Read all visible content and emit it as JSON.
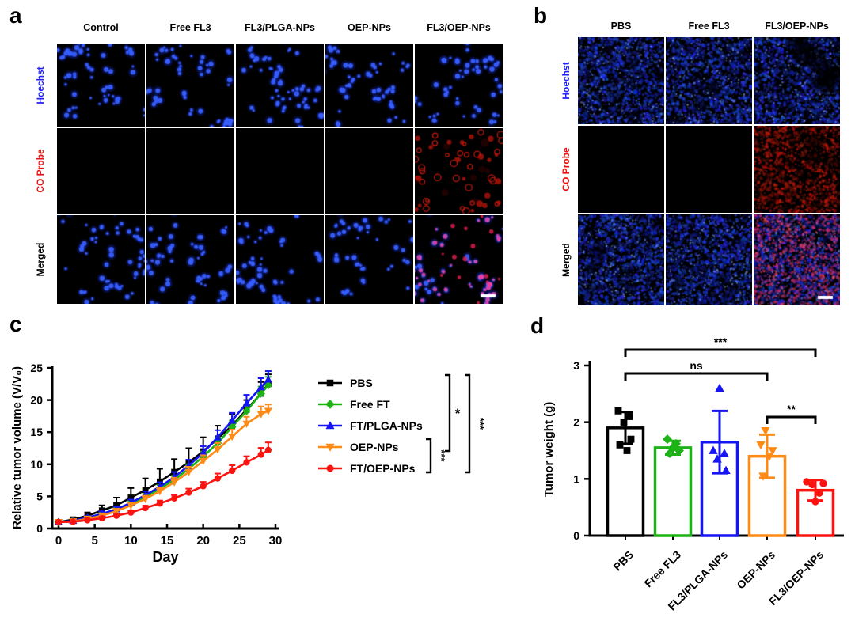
{
  "figure": {
    "background": "#ffffff"
  },
  "panel_a": {
    "label": "a",
    "col_headers": [
      "Control",
      "Free FL3",
      "FL3/PLGA-NPs",
      "OEP-NPs",
      "FL3/OEP-NPs"
    ],
    "row_labels": [
      {
        "text": "Hoechst",
        "color": "#1f1fff"
      },
      {
        "text": "CO Probe",
        "color": "#ee1111"
      },
      {
        "text": "Merged",
        "color": "#000000"
      }
    ],
    "cells": [
      [
        "blue-sparse",
        "blue-sparse",
        "blue-sparse",
        "blue-sparse",
        "blue-sparse"
      ],
      [
        "black",
        "black",
        "black",
        "black",
        "red-cells"
      ],
      [
        "blue-sparse",
        "blue-sparse",
        "blue-sparse",
        "blue-sparse",
        "merged-sparse"
      ]
    ],
    "scalebar_cell": {
      "row": 2,
      "col": 4
    }
  },
  "panel_b": {
    "label": "b",
    "col_headers": [
      "PBS",
      "Free FL3",
      "FL3/OEP-NPs"
    ],
    "row_labels": [
      {
        "text": "Hoechst",
        "color": "#1f1fff"
      },
      {
        "text": "CO Probe",
        "color": "#ee1111"
      },
      {
        "text": "Merged",
        "color": "#000000"
      }
    ],
    "cells": [
      [
        "blue-dense",
        "blue-dense",
        "blue-dense-dark"
      ],
      [
        "black",
        "black",
        "red-dense"
      ],
      [
        "blue-dense",
        "blue-dense",
        "merged-dense"
      ]
    ],
    "scalebar_cell": {
      "row": 2,
      "col": 2
    }
  },
  "panel_c": {
    "label": "c",
    "chart_data": {
      "type": "line",
      "title": "",
      "xlabel": "Day",
      "ylabel": "Relative tumor volume (V/V₀)",
      "xlim": [
        0,
        30
      ],
      "ylim": [
        0,
        25
      ],
      "xticks": [
        0,
        5,
        10,
        15,
        20,
        25,
        30
      ],
      "yticks": [
        0,
        5,
        10,
        15,
        20,
        25
      ],
      "legend_position": "right",
      "x": [
        0,
        2,
        4,
        6,
        8,
        10,
        12,
        14,
        16,
        18,
        20,
        22,
        24,
        26,
        28,
        29
      ],
      "series": [
        {
          "name": "PBS",
          "color": "#000000",
          "marker": "square",
          "values": [
            1,
            1.4,
            2,
            2.8,
            3.6,
            4.8,
            6,
            7.3,
            8.8,
            10.3,
            12,
            14,
            16,
            18.5,
            21,
            22.5
          ],
          "errors": [
            0.2,
            0.3,
            0.5,
            0.8,
            1.2,
            1.5,
            1.8,
            2,
            2,
            2.2,
            2.2,
            2,
            1.8,
            1.5,
            1.8,
            1.5
          ]
        },
        {
          "name": "Free FT",
          "color": "#1db215",
          "marker": "diamond",
          "values": [
            1,
            1.2,
            1.6,
            2.2,
            2.9,
            3.8,
            4.9,
            6.2,
            7.6,
            9.3,
            11.2,
            13.3,
            15.8,
            18.3,
            21,
            22.3
          ],
          "errors": [
            0.15,
            0.2,
            0.25,
            0.3,
            0.35,
            0.4,
            0.5,
            0.55,
            0.6,
            0.7,
            0.8,
            0.9,
            1,
            1,
            1.1,
            1.3
          ]
        },
        {
          "name": "FT/PLGA-NPs",
          "color": "#1414f5",
          "marker": "triangle-up",
          "values": [
            1,
            1.2,
            1.7,
            2.3,
            3,
            4,
            5.2,
            6.5,
            8,
            9.8,
            11.8,
            14.2,
            16.8,
            19.5,
            22,
            23.2
          ],
          "errors": [
            0.15,
            0.2,
            0.25,
            0.35,
            0.4,
            0.5,
            0.6,
            0.7,
            0.8,
            0.9,
            1,
            1.1,
            1.2,
            1.3,
            1.4,
            1.3
          ]
        },
        {
          "name": "OEP-NPs",
          "color": "#ff8b17",
          "marker": "triangle-down",
          "values": [
            1,
            1.1,
            1.5,
            2,
            2.7,
            3.6,
            4.6,
            5.8,
            7.2,
            8.8,
            10.5,
            12.3,
            14.3,
            16.3,
            17.8,
            18.3
          ],
          "errors": [
            0.1,
            0.15,
            0.2,
            0.3,
            0.35,
            0.45,
            0.5,
            0.6,
            0.7,
            0.8,
            0.9,
            1,
            1.1,
            1.1,
            1.2,
            1
          ]
        },
        {
          "name": "FT/OEP-NPs",
          "color": "#fb1310",
          "marker": "circle",
          "values": [
            1,
            1.05,
            1.3,
            1.6,
            2,
            2.5,
            3.2,
            3.9,
            4.7,
            5.6,
            6.6,
            7.8,
            9,
            10.3,
            11.5,
            12.2
          ],
          "errors": [
            0.1,
            0.1,
            0.15,
            0.2,
            0.25,
            0.3,
            0.35,
            0.45,
            0.5,
            0.6,
            0.65,
            0.75,
            0.85,
            0.95,
            1.05,
            1.2
          ]
        }
      ],
      "significance": [
        {
          "label": "*",
          "from": "PBS",
          "to": "OEP-NPs"
        },
        {
          "label": "***",
          "from": "OEP-NPs",
          "to": "FT/OEP-NPs"
        },
        {
          "label": "***",
          "from": "PBS",
          "to": "FT/OEP-NPs"
        }
      ]
    }
  },
  "panel_d": {
    "label": "d",
    "chart_data": {
      "type": "bar",
      "title": "",
      "xlabel": "",
      "ylabel": "Tumor weight (g)",
      "ylim": [
        0,
        3
      ],
      "yticks": [
        0,
        1,
        2,
        3
      ],
      "categories": [
        "PBS",
        "Free FL3",
        "FL3/PLGA-NPs",
        "OEP-NPs",
        "FL3/OEP-NPs"
      ],
      "values": [
        1.9,
        1.55,
        1.65,
        1.4,
        0.8
      ],
      "errors": [
        0.28,
        0.12,
        0.55,
        0.38,
        0.18
      ],
      "colors": [
        "#000000",
        "#1db215",
        "#1414f5",
        "#ff8b17",
        "#fb1310"
      ],
      "markers": [
        "square",
        "diamond",
        "triangle-up",
        "triangle-down",
        "circle"
      ],
      "points": [
        [
          2.2,
          2.1,
          2.0,
          1.7,
          1.6,
          1.5
        ],
        [
          1.7,
          1.62,
          1.55,
          1.5,
          1.45
        ],
        [
          2.6,
          1.5,
          1.45,
          1.35,
          1.15
        ],
        [
          1.85,
          1.6,
          1.5,
          1.4,
          1.05
        ],
        [
          0.95,
          0.92,
          0.9,
          0.75,
          0.6
        ]
      ],
      "significance": [
        {
          "label": "***",
          "from": "PBS",
          "to": "FL3/OEP-NPs"
        },
        {
          "label": "ns",
          "from": "PBS",
          "to": "OEP-NPs"
        },
        {
          "label": "**",
          "from": "OEP-NPs",
          "to": "FL3/OEP-NPs"
        }
      ]
    }
  }
}
